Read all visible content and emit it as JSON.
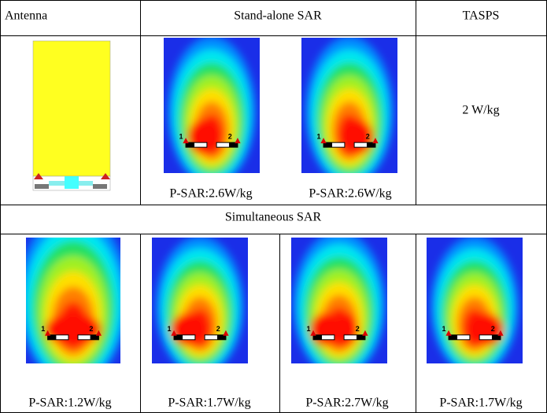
{
  "table": {
    "header": [
      "Antenna",
      "Stand-alone SAR",
      "TASPS"
    ],
    "standalone_labels": [
      "P-SAR:2.6W/kg",
      "P-SAR:2.6W/kg"
    ],
    "tasps_value": "2 W/kg",
    "simultaneous_title": "Simultaneous SAR",
    "simultaneous_labels": [
      "P-SAR:1.2W/kg",
      "P-SAR:1.7W/kg",
      "P-SAR:2.7W/kg",
      "P-SAR:1.7W/kg"
    ],
    "port_labels": [
      "1",
      "2"
    ]
  }
}
